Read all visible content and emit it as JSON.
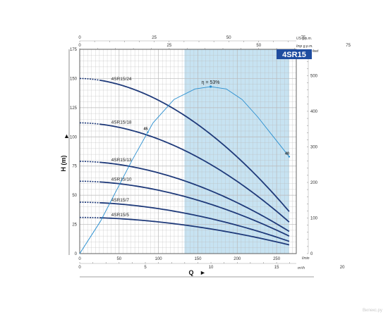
{
  "chart_data": {
    "type": "line",
    "model": "4SR15",
    "ylabel": "H (m)",
    "xlabel": "Q",
    "x_unit": "l/min",
    "x_unit_alt": "m³/h",
    "y_unit_alt": "feet",
    "top_units": [
      "US g.p.m.",
      "Imp g.p.m."
    ],
    "xlim": [
      0,
      275
    ],
    "ylim": [
      0,
      175
    ],
    "y_ticks": [
      0,
      25,
      50,
      75,
      100,
      125,
      150,
      175
    ],
    "x_ticks": [
      0,
      50,
      100,
      150,
      200,
      250
    ],
    "m3h_ticks": [
      0,
      5,
      10,
      15,
      20
    ],
    "feet_ticks": [
      0,
      100,
      200,
      300,
      400,
      500
    ],
    "us_gpm_ticks": [
      0,
      25,
      50,
      75
    ],
    "imp_gpm_ticks": [
      0,
      25,
      50,
      75
    ],
    "recommended_range": [
      133,
      266
    ],
    "efficiency": {
      "label": "η = 53%",
      "points": [
        [
          0,
          0
        ],
        [
          40,
          28
        ],
        [
          100,
          80
        ],
        [
          140,
          112
        ],
        [
          180,
          132
        ],
        [
          220,
          141
        ],
        [
          250,
          143
        ],
        [
          280,
          141
        ],
        [
          310,
          132
        ],
        [
          340,
          117
        ],
        [
          370,
          100
        ],
        [
          400,
          83
        ]
      ],
      "point_labels": [
        {
          "q": 130,
          "text": "45"
        },
        {
          "q": 400,
          "text": "40"
        }
      ]
    },
    "series": [
      {
        "name": "4SR15/24",
        "shutoff": 150,
        "end": 36
      },
      {
        "name": "4SR15/18",
        "shutoff": 112,
        "end": 27
      },
      {
        "name": "4SR15/13",
        "shutoff": 79,
        "end": 19
      },
      {
        "name": "4SR15/10",
        "shutoff": 62,
        "end": 15
      },
      {
        "name": "4SR15/7",
        "shutoff": 44,
        "end": 10.5
      },
      {
        "name": "4SR15/5",
        "shutoff": 31,
        "end": 7.5
      }
    ],
    "curve_label_q": 40,
    "curve_end_q": 266,
    "dashed_until_q": 26
  },
  "colors": {
    "curve": "#1f3a7a",
    "efficiency": "#2a8fd0",
    "band": "#c7e3f2",
    "badge": "#1f4da0",
    "grid": "#b9b9b9"
  },
  "watermark": "Вилекс.ру"
}
